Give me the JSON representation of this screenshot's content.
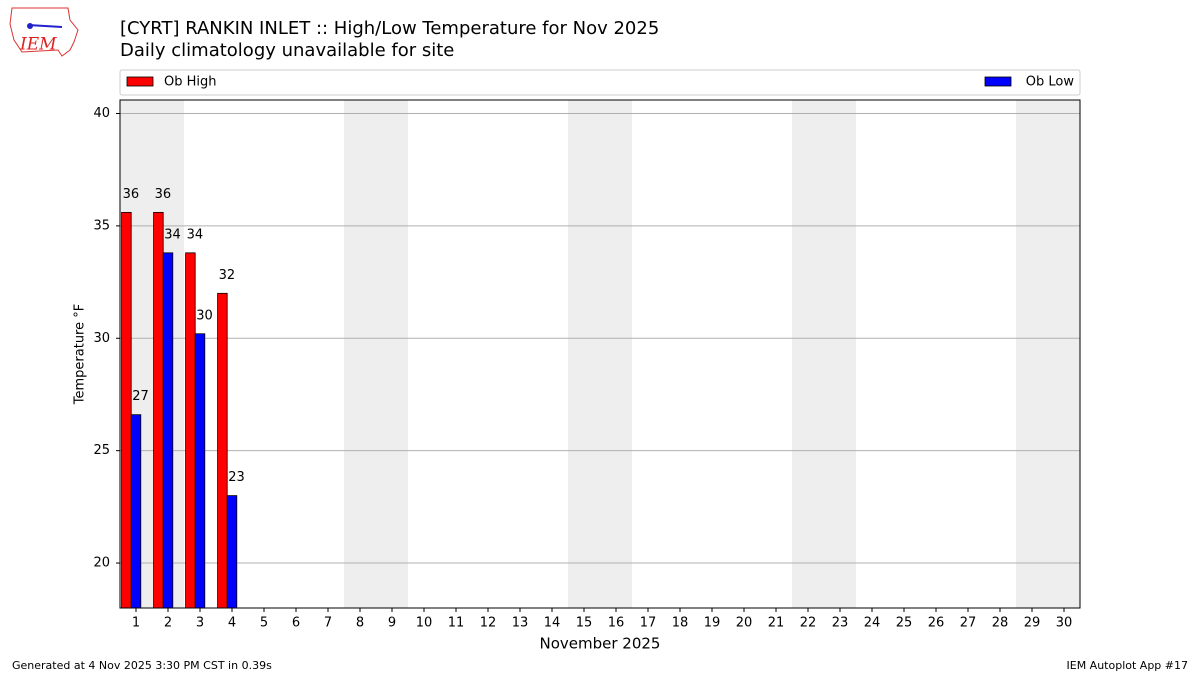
{
  "chart_data": {
    "type": "bar",
    "title": "[CYRT] RANKIN INLET :: High/Low Temperature for Nov 2025",
    "subtitle": "Daily climatology unavailable for site",
    "logo_text": "IEM",
    "x_label": "November 2025",
    "y_label": "Temperature °F",
    "x": [
      1,
      2,
      3,
      4,
      5,
      6,
      7,
      8,
      9,
      10,
      11,
      12,
      13,
      14,
      15,
      16,
      17,
      18,
      19,
      20,
      21,
      22,
      23,
      24,
      25,
      26,
      27,
      28,
      29,
      30
    ],
    "xlim": [
      0.5,
      30.5
    ],
    "xticks": [
      1,
      2,
      3,
      4,
      5,
      6,
      7,
      8,
      9,
      10,
      11,
      12,
      13,
      14,
      15,
      16,
      17,
      18,
      19,
      20,
      21,
      22,
      23,
      24,
      25,
      26,
      27,
      28,
      29,
      30
    ],
    "ylim": [
      18,
      40.6
    ],
    "yticks": [
      20,
      25,
      30,
      35,
      40
    ],
    "grid": true,
    "legend": "top",
    "shaded_x_ranges": [
      [
        0.5,
        2.5
      ],
      [
        7.5,
        9.5
      ],
      [
        14.5,
        16.5
      ],
      [
        21.5,
        23.5
      ],
      [
        28.5,
        30.5
      ]
    ],
    "shade_color": "#eeeeee",
    "series": [
      {
        "name": "Ob High",
        "color": "#ff0000",
        "values": [
          35.6,
          35.6,
          33.8,
          32.0,
          null,
          null,
          null,
          null,
          null,
          null,
          null,
          null,
          null,
          null,
          null,
          null,
          null,
          null,
          null,
          null,
          null,
          null,
          null,
          null,
          null,
          null,
          null,
          null,
          null,
          null
        ],
        "value_labels": [
          "36",
          "36",
          "34",
          "32",
          null,
          null,
          null,
          null,
          null,
          null,
          null,
          null,
          null,
          null,
          null,
          null,
          null,
          null,
          null,
          null,
          null,
          null,
          null,
          null,
          null,
          null,
          null,
          null,
          null,
          null
        ]
      },
      {
        "name": "Ob Low",
        "color": "#0000ff",
        "values": [
          26.6,
          33.8,
          30.2,
          23.0,
          null,
          null,
          null,
          null,
          null,
          null,
          null,
          null,
          null,
          null,
          null,
          null,
          null,
          null,
          null,
          null,
          null,
          null,
          null,
          null,
          null,
          null,
          null,
          null,
          null,
          null
        ],
        "value_labels": [
          "27",
          "34",
          "30",
          "23",
          null,
          null,
          null,
          null,
          null,
          null,
          null,
          null,
          null,
          null,
          null,
          null,
          null,
          null,
          null,
          null,
          null,
          null,
          null,
          null,
          null,
          null,
          null,
          null,
          null,
          null
        ]
      }
    ],
    "footer_left": "Generated at 4 Nov 2025 3:30 PM CST in 0.39s",
    "footer_right": "IEM Autoplot App #17"
  }
}
